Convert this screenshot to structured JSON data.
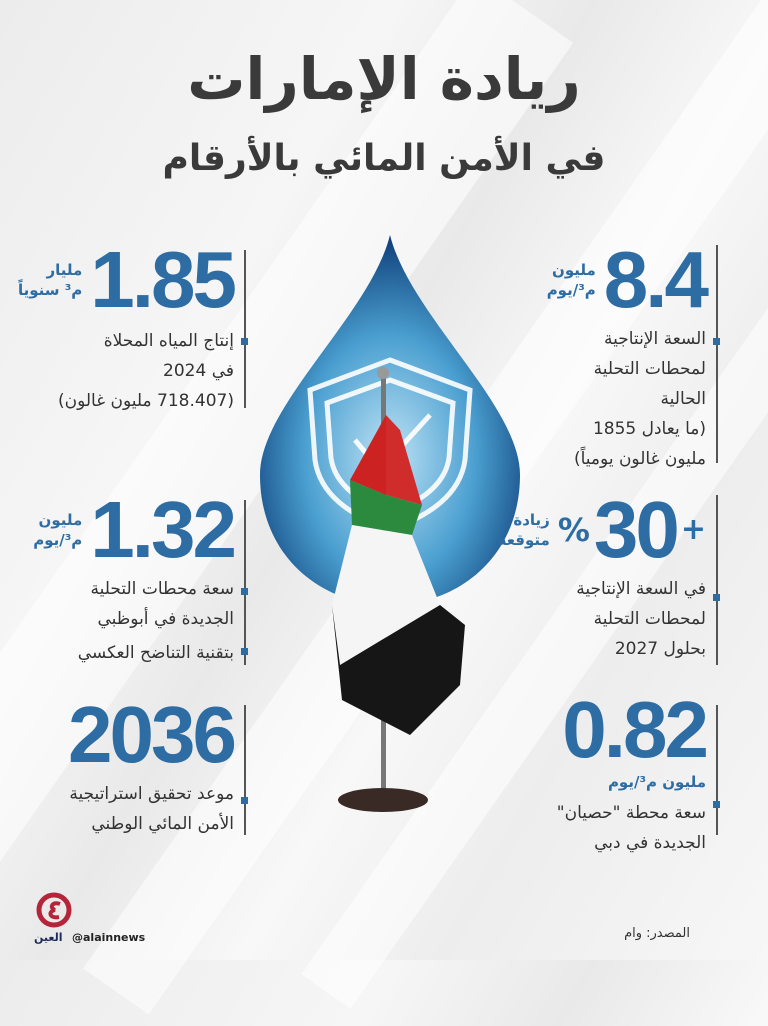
{
  "header": {
    "title": "ريادة الإمارات",
    "subtitle": "في الأمن المائي بالأرقام"
  },
  "stats": {
    "desal_production": {
      "value": "1.85",
      "unit_line1": "مليار",
      "unit_line2": "م³ سنوياً",
      "desc": [
        "إنتاج المياه المحلاة",
        "في 2024",
        "(718.407 مليون غالون)"
      ]
    },
    "abudhabi_capacity": {
      "value": "1.32",
      "unit_line1": "مليون",
      "unit_line2": "م³/يوم",
      "desc": [
        "سعة محطات التحلية",
        "الجديدة في أبوظبي"
      ],
      "desc2": "بتقنية التناضح العكسي"
    },
    "strategy_year": {
      "value": "2036",
      "desc": [
        "موعد تحقيق استراتيجية",
        "الأمن المائي الوطني"
      ]
    },
    "current_capacity": {
      "value": "8.4",
      "unit_line1": "مليون",
      "unit_line2": "م³/يوم",
      "desc": [
        "السعة الإنتاجية",
        "لمحطات التحلية",
        "الحالية",
        "(ما يعادل 1855",
        "مليون غالون يومياً)"
      ]
    },
    "expected_increase": {
      "value": "30",
      "prefix": "+",
      "percent": "%",
      "unit_line1": "زيادة",
      "unit_line2": "متوقعة",
      "desc": [
        "في السعة الإنتاجية",
        "لمحطات التحلية",
        "بحلول 2027"
      ]
    },
    "hassyan_capacity": {
      "value": "0.82",
      "unit": "مليون م³/يوم",
      "desc": [
        "سعة محطة \"حصيان\"",
        "الجديدة في دبي"
      ]
    }
  },
  "footer": {
    "source": "المصدر: وام",
    "handle": "@alainnews",
    "logo_text": "العين"
  },
  "colors": {
    "accent": "#2e6ca4",
    "title": "#3a3a3a",
    "logo": "#b5253a"
  },
  "icons": [
    "water-drop-icon",
    "shield-check-icon",
    "uae-flag-icon"
  ]
}
